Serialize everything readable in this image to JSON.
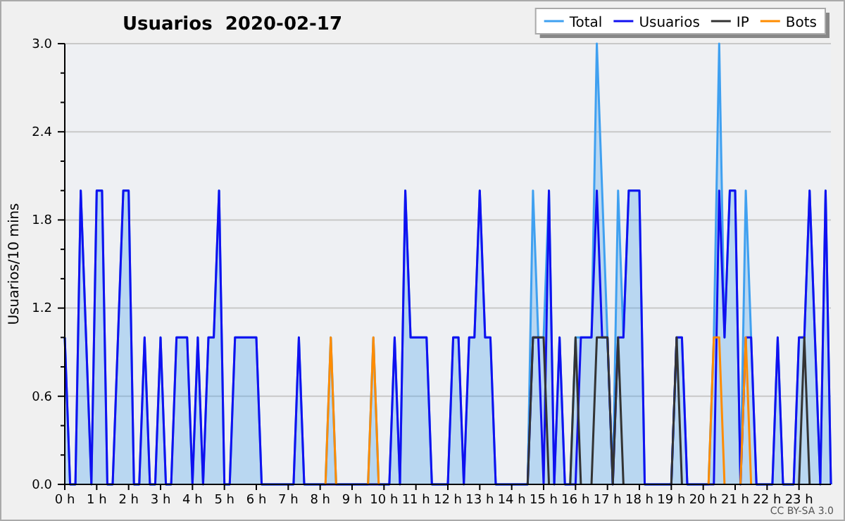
{
  "chart_data": {
    "type": "line",
    "title": "Usuarios  2020-02-17",
    "ylabel": "Usuarios/10 mins",
    "annotations": [
      "CC BY-SA 3.0"
    ],
    "x": [
      0,
      0.167,
      0.333,
      0.5,
      0.667,
      0.833,
      1,
      1.167,
      1.333,
      1.5,
      1.667,
      1.833,
      2,
      2.167,
      2.333,
      2.5,
      2.667,
      2.833,
      3,
      3.167,
      3.333,
      3.5,
      3.667,
      3.833,
      4,
      4.167,
      4.333,
      4.5,
      4.667,
      4.833,
      5,
      5.167,
      5.333,
      5.5,
      5.667,
      5.833,
      6,
      6.167,
      6.333,
      6.5,
      6.667,
      6.833,
      7,
      7.167,
      7.333,
      7.5,
      7.667,
      7.833,
      8,
      8.167,
      8.333,
      8.5,
      8.667,
      8.833,
      9,
      9.167,
      9.333,
      9.5,
      9.667,
      9.833,
      10,
      10.167,
      10.333,
      10.5,
      10.667,
      10.833,
      11,
      11.167,
      11.333,
      11.5,
      11.667,
      11.833,
      12,
      12.167,
      12.333,
      12.5,
      12.667,
      12.833,
      13,
      13.167,
      13.333,
      13.5,
      13.667,
      13.833,
      14,
      14.167,
      14.333,
      14.5,
      14.667,
      14.833,
      15,
      15.167,
      15.333,
      15.5,
      15.667,
      15.833,
      16,
      16.167,
      16.333,
      16.5,
      16.667,
      16.833,
      17,
      17.167,
      17.333,
      17.5,
      17.667,
      17.833,
      18,
      18.167,
      18.333,
      18.5,
      18.667,
      18.833,
      19,
      19.167,
      19.333,
      19.5,
      19.667,
      19.833,
      20,
      20.167,
      20.333,
      20.5,
      20.667,
      20.833,
      21,
      21.167,
      21.333,
      21.5,
      21.667,
      21.833,
      22,
      22.167,
      22.333,
      22.5,
      22.667,
      22.833,
      23,
      23.167,
      23.333,
      23.5,
      23.667,
      23.833,
      24
    ],
    "series": [
      {
        "name": "Total",
        "type": "area",
        "color": "#3fa0f0",
        "values": [
          1,
          0,
          0,
          2,
          1,
          0,
          2,
          2,
          0,
          0,
          1,
          2,
          2,
          0,
          0,
          1,
          0,
          0,
          1,
          0,
          0,
          1,
          1,
          1,
          0,
          1,
          0,
          1,
          1,
          2,
          0,
          0,
          1,
          1,
          1,
          1,
          1,
          0,
          0,
          0,
          0,
          0,
          0,
          0,
          1,
          0,
          0,
          0,
          0,
          0,
          1,
          0,
          0,
          0,
          0,
          0,
          0,
          0,
          1,
          0,
          0,
          0,
          1,
          0,
          2,
          1,
          1,
          1,
          1,
          0,
          0,
          0,
          0,
          1,
          1,
          0,
          1,
          1,
          2,
          1,
          1,
          0,
          0,
          0,
          0,
          0,
          0,
          0,
          2,
          1,
          1,
          2,
          0,
          1,
          0,
          0,
          1,
          1,
          1,
          1,
          3,
          2,
          1,
          0,
          2,
          1,
          2,
          2,
          2,
          0,
          0,
          0,
          0,
          0,
          0,
          1,
          1,
          0,
          0,
          0,
          0,
          0,
          1,
          3,
          1,
          2,
          2,
          0,
          2,
          1,
          0,
          0,
          0,
          0,
          1,
          0,
          0,
          0,
          1,
          1,
          2,
          1,
          0,
          2,
          0
        ]
      },
      {
        "name": "Usuarios",
        "color": "#1010f0",
        "values": [
          1,
          0,
          0,
          2,
          1,
          0,
          2,
          2,
          0,
          0,
          1,
          2,
          2,
          0,
          0,
          1,
          0,
          0,
          1,
          0,
          0,
          1,
          1,
          1,
          0,
          1,
          0,
          1,
          1,
          2,
          0,
          0,
          1,
          1,
          1,
          1,
          1,
          0,
          0,
          0,
          0,
          0,
          0,
          0,
          1,
          0,
          0,
          0,
          0,
          0,
          0,
          0,
          0,
          0,
          0,
          0,
          0,
          0,
          0,
          0,
          0,
          0,
          1,
          0,
          2,
          1,
          1,
          1,
          1,
          0,
          0,
          0,
          0,
          1,
          1,
          0,
          1,
          1,
          2,
          1,
          1,
          0,
          0,
          0,
          0,
          0,
          0,
          0,
          1,
          1,
          0,
          2,
          0,
          1,
          0,
          0,
          0,
          1,
          1,
          1,
          2,
          1,
          1,
          0,
          1,
          1,
          2,
          2,
          2,
          0,
          0,
          0,
          0,
          0,
          0,
          1,
          1,
          0,
          0,
          0,
          0,
          0,
          0,
          2,
          1,
          2,
          2,
          0,
          1,
          1,
          0,
          0,
          0,
          0,
          1,
          0,
          0,
          0,
          1,
          1,
          2,
          1,
          0,
          2,
          0
        ]
      },
      {
        "name": "IP",
        "color": "#333333",
        "values": [
          null,
          null,
          null,
          null,
          null,
          null,
          null,
          null,
          null,
          null,
          null,
          null,
          null,
          null,
          null,
          null,
          null,
          null,
          null,
          null,
          null,
          null,
          null,
          null,
          null,
          null,
          null,
          null,
          null,
          null,
          null,
          null,
          null,
          null,
          null,
          null,
          null,
          null,
          null,
          null,
          null,
          null,
          null,
          null,
          null,
          null,
          null,
          null,
          null,
          null,
          null,
          null,
          null,
          null,
          null,
          null,
          null,
          null,
          null,
          null,
          null,
          null,
          null,
          null,
          null,
          null,
          null,
          null,
          null,
          null,
          null,
          null,
          null,
          null,
          null,
          null,
          null,
          null,
          null,
          null,
          null,
          null,
          null,
          null,
          null,
          null,
          null,
          0,
          1,
          1,
          1,
          0,
          null,
          null,
          null,
          0,
          1,
          0,
          null,
          0,
          1,
          1,
          1,
          0,
          1,
          0,
          null,
          null,
          null,
          null,
          null,
          null,
          null,
          null,
          0,
          1,
          0,
          null,
          null,
          null,
          null,
          null,
          null,
          null,
          null,
          null,
          null,
          null,
          null,
          null,
          null,
          null,
          null,
          null,
          null,
          null,
          null,
          null,
          0,
          1,
          0,
          null,
          null,
          null,
          null
        ]
      },
      {
        "name": "Bots",
        "color": "#ff8c00",
        "values": [
          null,
          null,
          null,
          null,
          null,
          null,
          null,
          null,
          null,
          null,
          null,
          null,
          null,
          null,
          null,
          null,
          null,
          null,
          null,
          null,
          null,
          null,
          null,
          null,
          null,
          null,
          null,
          null,
          null,
          null,
          null,
          null,
          null,
          null,
          null,
          null,
          null,
          null,
          null,
          null,
          null,
          null,
          null,
          null,
          null,
          null,
          null,
          null,
          null,
          0,
          1,
          0,
          null,
          null,
          null,
          null,
          null,
          0,
          1,
          0,
          null,
          null,
          null,
          null,
          null,
          null,
          null,
          null,
          null,
          null,
          null,
          null,
          null,
          null,
          null,
          null,
          null,
          null,
          null,
          null,
          null,
          null,
          null,
          null,
          null,
          null,
          null,
          null,
          null,
          null,
          null,
          null,
          null,
          null,
          null,
          null,
          null,
          null,
          null,
          null,
          null,
          null,
          null,
          null,
          null,
          null,
          null,
          null,
          null,
          null,
          null,
          null,
          null,
          null,
          null,
          null,
          null,
          null,
          null,
          null,
          null,
          0,
          1,
          1,
          0,
          null,
          null,
          0,
          1,
          0,
          null,
          null,
          null,
          null,
          null,
          null,
          null,
          null,
          null,
          null,
          null,
          null,
          null,
          null,
          null
        ]
      }
    ],
    "xlim": [
      0,
      24
    ],
    "xticks": [
      {
        "value": 0,
        "label": "0 h"
      },
      {
        "value": 1,
        "label": "1 h"
      },
      {
        "value": 2,
        "label": "2 h"
      },
      {
        "value": 3,
        "label": "3 h"
      },
      {
        "value": 4,
        "label": "4 h"
      },
      {
        "value": 5,
        "label": "5 h"
      },
      {
        "value": 6,
        "label": "6 h"
      },
      {
        "value": 7,
        "label": "7 h"
      },
      {
        "value": 8,
        "label": "8 h"
      },
      {
        "value": 9,
        "label": "9 h"
      },
      {
        "value": 10,
        "label": "10 h"
      },
      {
        "value": 11,
        "label": "11 h"
      },
      {
        "value": 12,
        "label": "12 h"
      },
      {
        "value": 13,
        "label": "13 h"
      },
      {
        "value": 14,
        "label": "14 h"
      },
      {
        "value": 15,
        "label": "15 h"
      },
      {
        "value": 16,
        "label": "16 h"
      },
      {
        "value": 17,
        "label": "17 h"
      },
      {
        "value": 18,
        "label": "18 h"
      },
      {
        "value": 19,
        "label": "19 h"
      },
      {
        "value": 20,
        "label": "20 h"
      },
      {
        "value": 21,
        "label": "21 h"
      },
      {
        "value": 22,
        "label": "22 h"
      },
      {
        "value": 23,
        "label": "23 h"
      }
    ],
    "ylim": [
      0,
      3
    ],
    "yticks": [
      {
        "value": 0,
        "label": "0.0"
      },
      {
        "value": 0.2,
        "label": null
      },
      {
        "value": 0.4,
        "label": null
      },
      {
        "value": 0.6,
        "label": "0.6"
      },
      {
        "value": 0.8,
        "label": null
      },
      {
        "value": 1,
        "label": null
      },
      {
        "value": 1.2,
        "label": "1.2"
      },
      {
        "value": 1.4,
        "label": null
      },
      {
        "value": 1.6,
        "label": null
      },
      {
        "value": 1.8,
        "label": "1.8"
      },
      {
        "value": 2,
        "label": null
      },
      {
        "value": 2.2,
        "label": null
      },
      {
        "value": 2.4,
        "label": "2.4"
      },
      {
        "value": 2.6,
        "label": null
      },
      {
        "value": 2.8,
        "label": null
      },
      {
        "value": 3,
        "label": "3.0"
      }
    ],
    "grid": "y",
    "legend": "top right",
    "marker": "none",
    "line_style": "solid"
  }
}
